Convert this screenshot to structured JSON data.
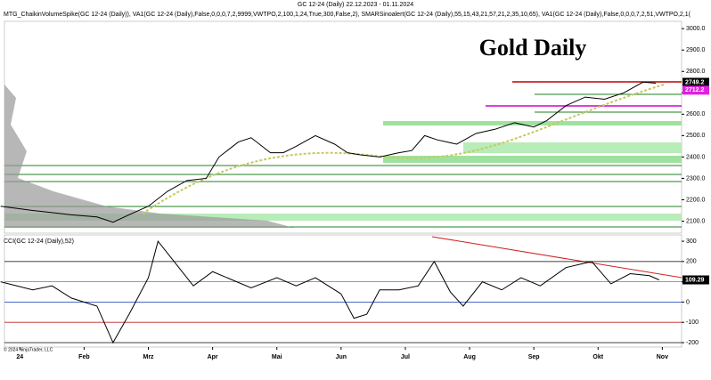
{
  "header": "GC 12-24 (Daily)  22.12.2023 - 01.11.2024",
  "indicators": "MTG_ChaikinVolumeSpike(GC 12-24 (Daily)),  VA1(GC 12-24 (Daily),False,0,0,0,7,2,9999,VWTPO,2,100,1,24,True,300,False,2),  SMARSinoalert(GC 12-24 (Daily),55,15,43,21,57,21,2,35,10,65),  VA1(GC 12-24 (Daily),False,0,0,0,7,2,51,VWTPO,2,1(",
  "copyright": "© 2024 NinjaTrader, LLC",
  "chart_data": [
    {
      "type": "line",
      "title": "Gold Daily",
      "color": "#000000",
      "x": [
        -0.3,
        0.2,
        0.5,
        0.8,
        1.2,
        1.45,
        1.7,
        2.0,
        2.3,
        2.6,
        2.9,
        3.1,
        3.4,
        3.6,
        3.9,
        4.1,
        4.3,
        4.6,
        4.9,
        5.1,
        5.3,
        5.6,
        5.9,
        6.1,
        6.3,
        6.5,
        6.8,
        7.1,
        7.4,
        7.7,
        8.0,
        8.2,
        8.5,
        8.8,
        9.1,
        9.4,
        9.7,
        9.9
      ],
      "values": [
        2170,
        2150,
        2140,
        2130,
        2120,
        2095,
        2130,
        2170,
        2240,
        2290,
        2300,
        2400,
        2470,
        2490,
        2420,
        2420,
        2450,
        2500,
        2460,
        2420,
        2410,
        2400,
        2420,
        2430,
        2500,
        2480,
        2460,
        2510,
        2530,
        2560,
        2540,
        2570,
        2640,
        2680,
        2670,
        2700,
        2750,
        2745
      ],
      "xlim": [
        -0.24,
        10.3
      ],
      "ylim": [
        2044,
        3034
      ],
      "yticks": [
        {
          "value": 2100,
          "label": "2100.0"
        },
        {
          "value": 2200,
          "label": "2200.0"
        },
        {
          "value": 2300,
          "label": "2300.0"
        },
        {
          "value": 2400,
          "label": "2400.0"
        },
        {
          "value": 2500,
          "label": "2500.0"
        },
        {
          "value": 2600,
          "label": "2600.0"
        },
        {
          "value": 2700,
          "label": "2700.0"
        },
        {
          "value": 2800,
          "label": "2800.0"
        },
        {
          "value": 2900,
          "label": "2900.0"
        },
        {
          "value": 3000,
          "label": "3000.0"
        }
      ],
      "markers": [
        {
          "value": 2749.2,
          "color": "#000000"
        },
        {
          "value": 2712.2,
          "color": "#e020e0"
        }
      ]
    },
    {
      "type": "line",
      "title": "CCI(GC 12-24 (Daily),52)",
      "color": "#000000",
      "x": [
        -0.3,
        0.2,
        0.5,
        0.8,
        1.2,
        1.45,
        1.7,
        2.0,
        2.15,
        2.4,
        2.7,
        3.0,
        3.3,
        3.6,
        4.0,
        4.3,
        4.6,
        5.0,
        5.2,
        5.4,
        5.6,
        5.9,
        6.2,
        6.45,
        6.7,
        6.9,
        7.2,
        7.5,
        7.8,
        8.1,
        8.5,
        8.9,
        9.2,
        9.5,
        9.8,
        9.95
      ],
      "values": [
        100,
        60,
        80,
        20,
        -20,
        -200,
        -60,
        120,
        300,
        200,
        80,
        150,
        110,
        70,
        120,
        80,
        120,
        40,
        -80,
        -60,
        60,
        60,
        80,
        200,
        50,
        -20,
        100,
        60,
        120,
        80,
        170,
        200,
        90,
        140,
        130,
        109.29
      ],
      "xlim": [
        -0.24,
        10.3
      ],
      "ylim": [
        -222,
        331
      ],
      "yticks": [
        -200,
        -100,
        0,
        100,
        200,
        300
      ],
      "xticks": [
        {
          "value": 0,
          "label": "24"
        },
        {
          "value": 1,
          "label": "Feb"
        },
        {
          "value": 2,
          "label": "Mrz"
        },
        {
          "value": 3,
          "label": "Apr"
        },
        {
          "value": 4,
          "label": "Mai"
        },
        {
          "value": 5,
          "label": "Jun"
        },
        {
          "value": 6,
          "label": "Jul"
        },
        {
          "value": 7,
          "label": "Aug"
        },
        {
          "value": 8,
          "label": "Sep"
        },
        {
          "value": 9,
          "label": "Okt"
        },
        {
          "value": 10,
          "label": "Nov"
        }
      ],
      "markers": [
        {
          "value": 109.29,
          "color": "#000000"
        }
      ]
    }
  ]
}
